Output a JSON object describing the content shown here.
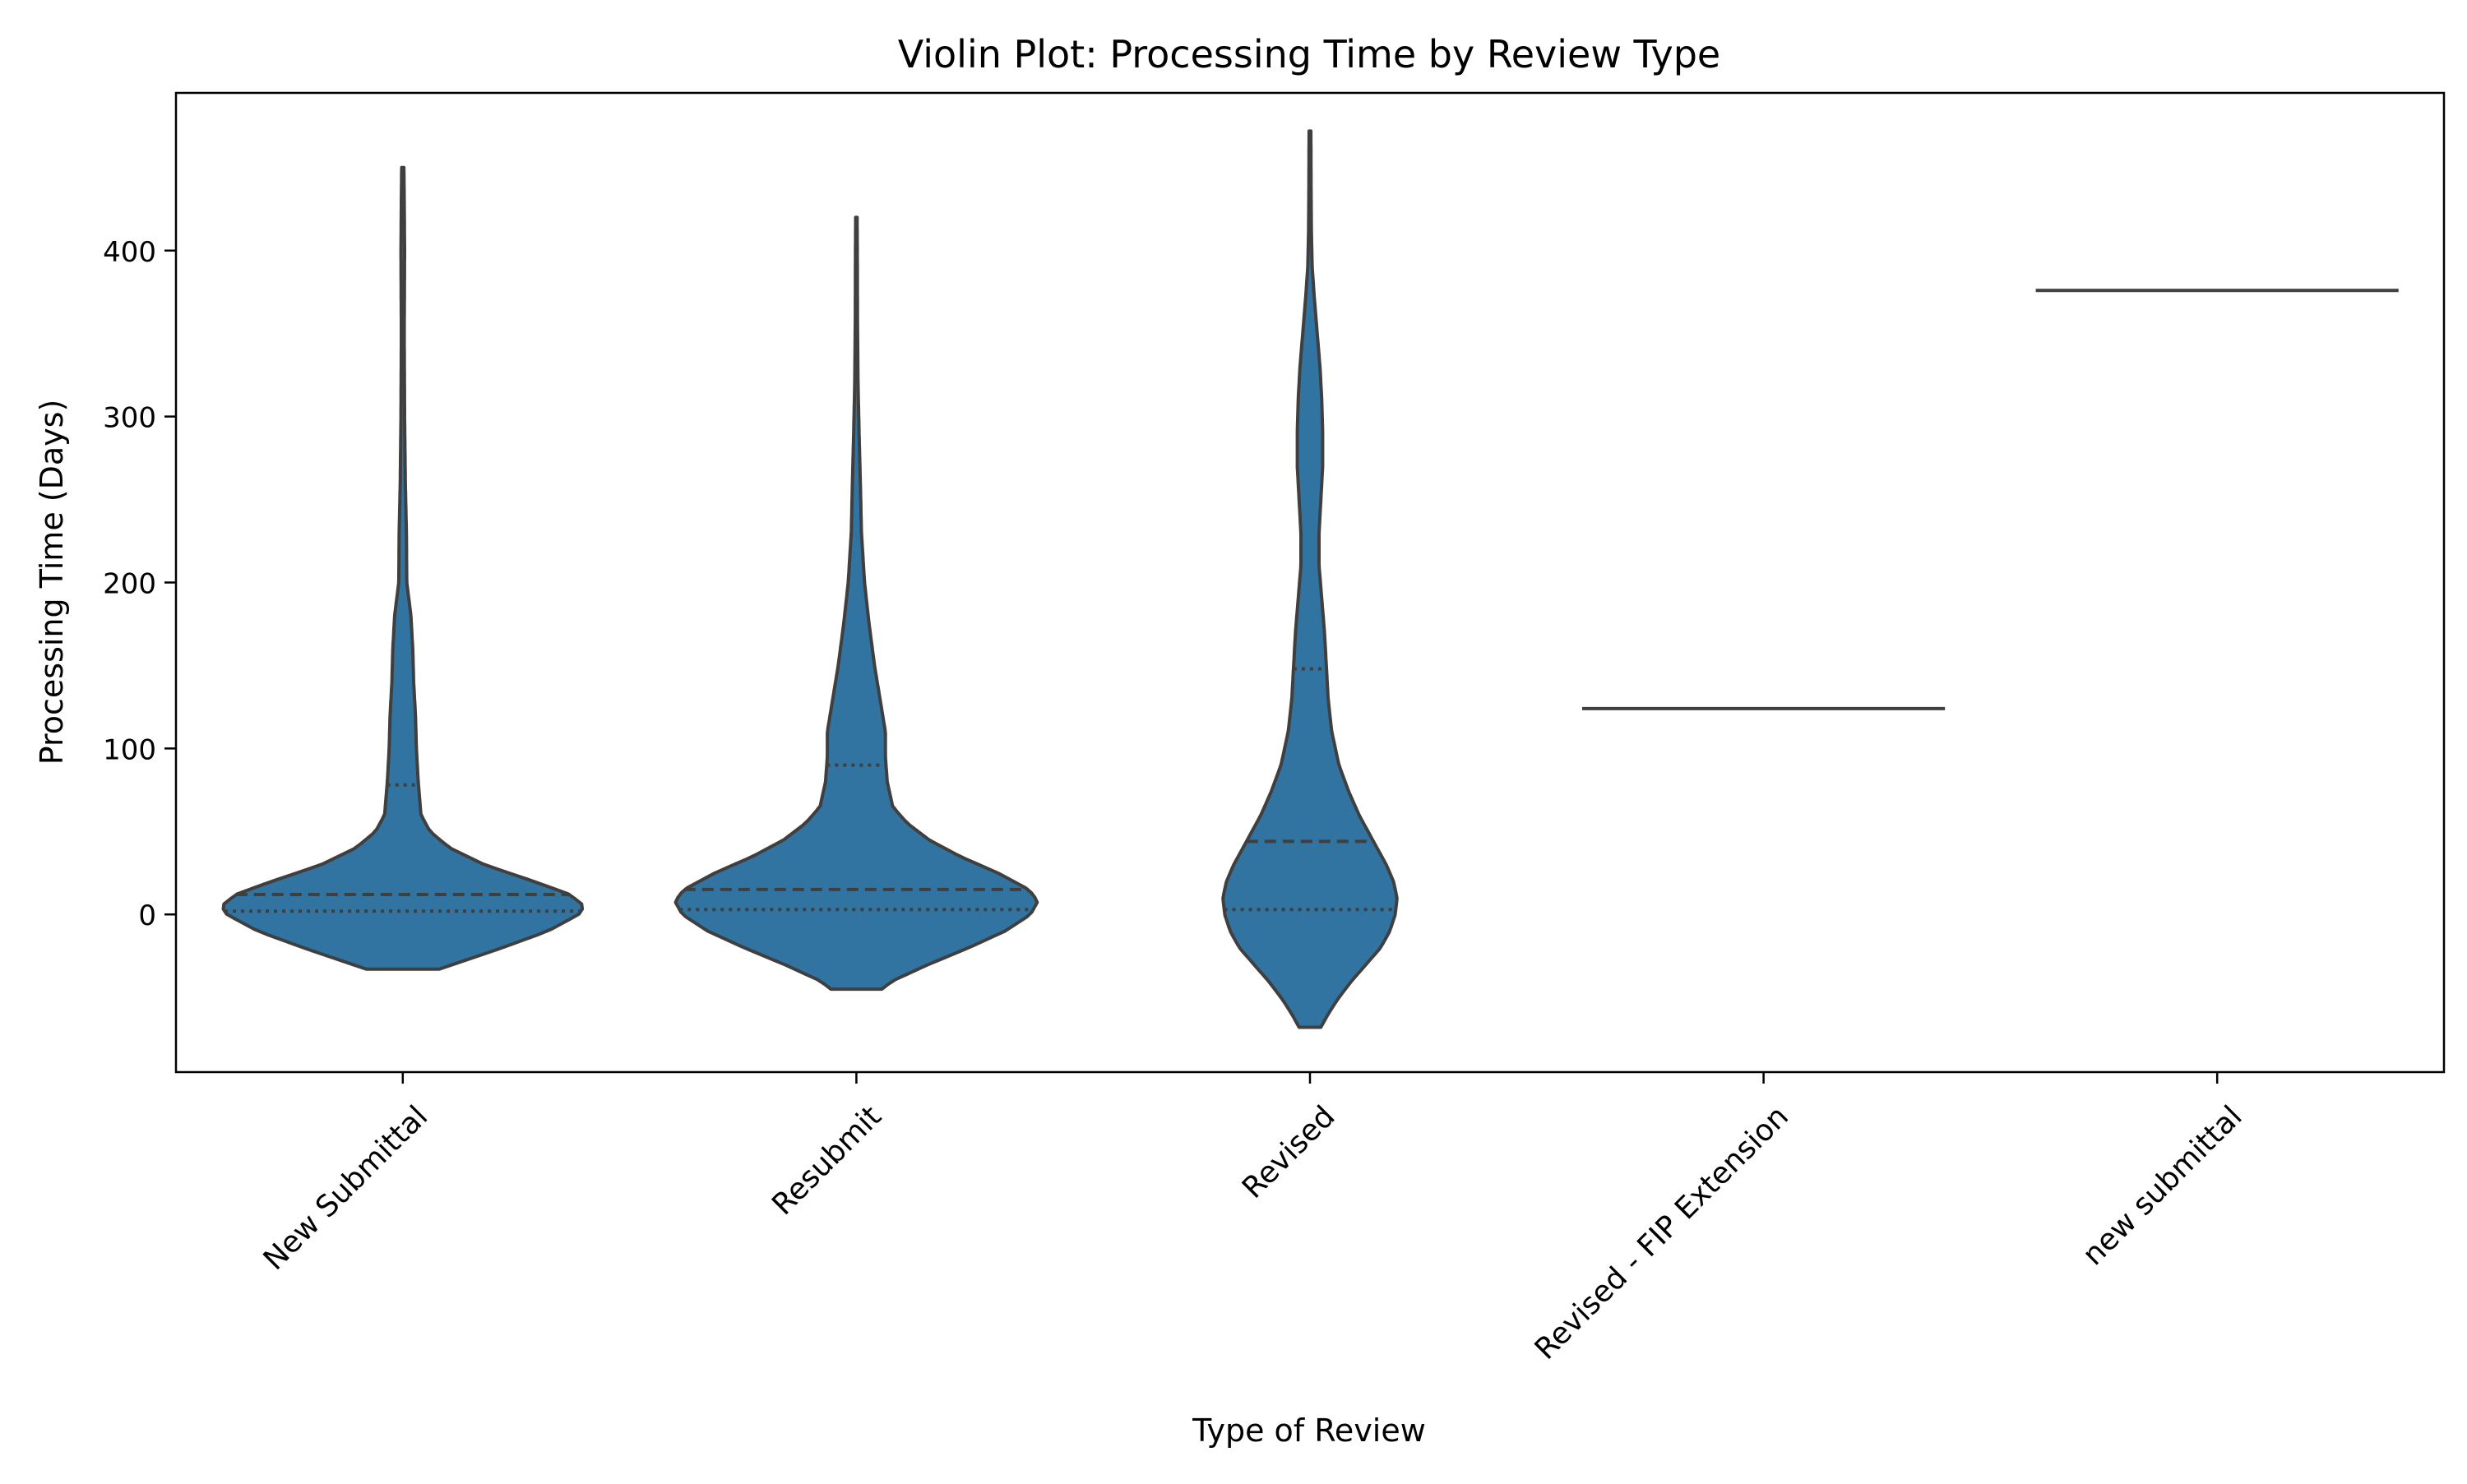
{
  "chart_data": {
    "type": "violin",
    "title": "Violin Plot: Processing Time by Review Type",
    "xlabel": "Type of Review",
    "ylabel": "Processing Time (Days)",
    "ylim": [
      -95,
      495
    ],
    "yticks": [
      0,
      100,
      200,
      300,
      400
    ],
    "grid": false,
    "legend": "none",
    "fill_color": "#3274a1",
    "line_color": "#3f3f3f",
    "categories": [
      "New Submittal",
      "Resubmit",
      "Revised",
      "Revised - FIP Extension",
      "new submittal"
    ],
    "series": [
      {
        "category": "New Submittal",
        "quartiles": {
          "q1": 2,
          "median": 12,
          "q3": 78
        },
        "min": -33,
        "max": 450,
        "density_profile": [
          [
            -33,
            0.2
          ],
          [
            -30,
            0.28
          ],
          [
            -20,
            0.55
          ],
          [
            -10,
            0.8
          ],
          [
            0,
            0.97
          ],
          [
            5,
            1.0
          ],
          [
            12,
            0.92
          ],
          [
            20,
            0.72
          ],
          [
            30,
            0.45
          ],
          [
            40,
            0.26
          ],
          [
            50,
            0.15
          ],
          [
            60,
            0.1
          ],
          [
            80,
            0.085
          ],
          [
            100,
            0.075
          ],
          [
            120,
            0.07
          ],
          [
            140,
            0.06
          ],
          [
            160,
            0.055
          ],
          [
            180,
            0.045
          ],
          [
            200,
            0.022
          ],
          [
            230,
            0.02
          ],
          [
            260,
            0.014
          ],
          [
            300,
            0.01
          ],
          [
            350,
            0.008
          ],
          [
            400,
            0.01
          ],
          [
            430,
            0.008
          ],
          [
            450,
            0.006
          ]
        ]
      },
      {
        "category": "Resubmit",
        "quartiles": {
          "q1": 3,
          "median": 15,
          "q3": 90
        },
        "min": -45,
        "max": 420,
        "density_profile": [
          [
            -45,
            0.14
          ],
          [
            -40,
            0.2
          ],
          [
            -30,
            0.4
          ],
          [
            -20,
            0.62
          ],
          [
            -10,
            0.82
          ],
          [
            0,
            0.96
          ],
          [
            8,
            1.0
          ],
          [
            15,
            0.95
          ],
          [
            25,
            0.78
          ],
          [
            35,
            0.57
          ],
          [
            45,
            0.4
          ],
          [
            55,
            0.28
          ],
          [
            65,
            0.2
          ],
          [
            80,
            0.17
          ],
          [
            95,
            0.16
          ],
          [
            110,
            0.16
          ],
          [
            130,
            0.13
          ],
          [
            150,
            0.1
          ],
          [
            175,
            0.07
          ],
          [
            200,
            0.045
          ],
          [
            230,
            0.028
          ],
          [
            260,
            0.022
          ],
          [
            290,
            0.015
          ],
          [
            320,
            0.009
          ],
          [
            360,
            0.006
          ],
          [
            400,
            0.005
          ],
          [
            420,
            0.004
          ]
        ]
      },
      {
        "category": "Revised",
        "quartiles": {
          "q1": 3,
          "median": 44,
          "q3": 148
        },
        "min": -68,
        "max": 472,
        "density_profile": [
          [
            -68,
            0.06
          ],
          [
            -60,
            0.1
          ],
          [
            -50,
            0.16
          ],
          [
            -40,
            0.23
          ],
          [
            -30,
            0.31
          ],
          [
            -20,
            0.39
          ],
          [
            -10,
            0.44
          ],
          [
            0,
            0.47
          ],
          [
            10,
            0.48
          ],
          [
            20,
            0.46
          ],
          [
            30,
            0.42
          ],
          [
            40,
            0.37
          ],
          [
            50,
            0.32
          ],
          [
            60,
            0.27
          ],
          [
            75,
            0.21
          ],
          [
            90,
            0.16
          ],
          [
            110,
            0.12
          ],
          [
            130,
            0.1
          ],
          [
            150,
            0.09
          ],
          [
            170,
            0.08
          ],
          [
            190,
            0.065
          ],
          [
            210,
            0.05
          ],
          [
            230,
            0.05
          ],
          [
            250,
            0.06
          ],
          [
            270,
            0.07
          ],
          [
            290,
            0.07
          ],
          [
            310,
            0.065
          ],
          [
            330,
            0.055
          ],
          [
            350,
            0.04
          ],
          [
            370,
            0.025
          ],
          [
            390,
            0.012
          ],
          [
            410,
            0.008
          ],
          [
            440,
            0.006
          ],
          [
            472,
            0.005
          ]
        ]
      },
      {
        "category": "Revised - FIP Extension",
        "value": 124
      },
      {
        "category": "new submittal",
        "value": 376
      }
    ]
  }
}
